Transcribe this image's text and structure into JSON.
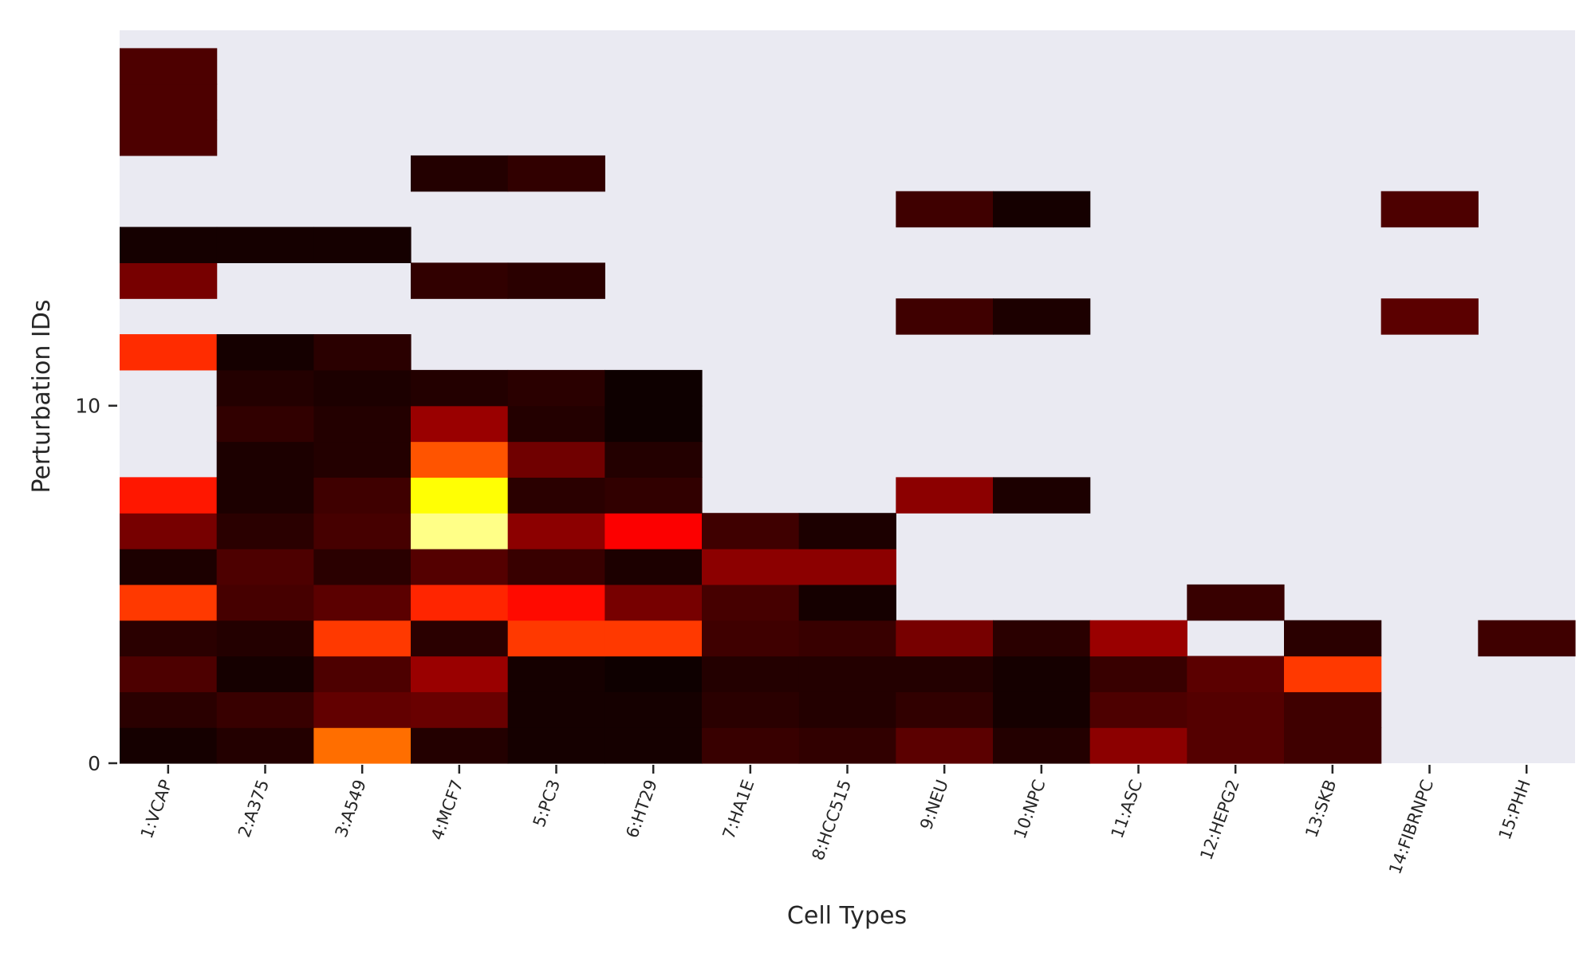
{
  "chart_data": {
    "type": "heatmap",
    "title": "",
    "xlabel": "Cell Types",
    "ylabel": "Perturbation IDs",
    "x_categories": [
      "1:VCAP",
      "2:A375",
      "3:A549",
      "4:MCF7",
      "5:PC3",
      "6:HT29",
      "7:HA1E",
      "8:HCC515",
      "9:NEU",
      "10:NPC",
      "11:ASC",
      "12:HEPG2",
      "13:SKB",
      "14:FIBRNPC",
      "15:PHH"
    ],
    "y_ticks": [
      0,
      10
    ],
    "ylim": [
      0,
      20.5
    ],
    "row_count": 20,
    "colormap": "hot",
    "missing_color": "#eaeaf2",
    "value_range": [
      0,
      1
    ],
    "grid": false,
    "legend": "none",
    "matrix": [
      [
        0.03,
        0.05,
        0.53,
        0.05,
        0.03,
        0.03,
        0.08,
        0.07,
        0.13,
        0.05,
        0.2,
        0.12,
        0.09,
        null,
        null
      ],
      [
        0.06,
        0.08,
        0.14,
        0.15,
        0.03,
        0.03,
        0.06,
        0.05,
        0.07,
        0.03,
        0.11,
        0.12,
        0.09,
        null,
        null
      ],
      [
        0.11,
        0.03,
        0.11,
        0.22,
        0.03,
        0.02,
        0.05,
        0.05,
        0.05,
        0.03,
        0.08,
        0.13,
        0.45,
        null,
        null
      ],
      [
        0.06,
        0.05,
        0.45,
        0.06,
        0.45,
        0.45,
        0.09,
        0.08,
        0.17,
        0.06,
        0.22,
        null,
        0.06,
        null,
        0.09
      ],
      [
        0.45,
        0.1,
        0.13,
        0.42,
        0.38,
        0.17,
        0.1,
        0.03,
        null,
        null,
        null,
        0.08,
        null,
        null,
        null
      ],
      [
        0.04,
        0.11,
        0.06,
        0.12,
        0.08,
        0.04,
        0.2,
        0.2,
        null,
        null,
        null,
        null,
        null,
        null,
        null
      ],
      [
        0.17,
        0.06,
        0.1,
        0.88,
        0.2,
        0.36,
        0.09,
        0.04,
        null,
        null,
        null,
        null,
        null,
        null,
        null
      ],
      [
        0.4,
        0.04,
        0.09,
        0.75,
        0.06,
        0.07,
        null,
        null,
        0.2,
        0.04,
        null,
        null,
        null,
        null,
        null
      ],
      [
        null,
        0.04,
        0.05,
        0.49,
        0.16,
        0.05,
        null,
        null,
        null,
        null,
        null,
        null,
        null,
        null,
        null
      ],
      [
        null,
        0.07,
        0.05,
        0.22,
        0.05,
        0.02,
        null,
        null,
        null,
        null,
        null,
        null,
        null,
        null,
        null
      ],
      [
        null,
        0.05,
        0.04,
        0.05,
        0.06,
        0.02,
        null,
        null,
        null,
        null,
        null,
        null,
        null,
        null,
        null
      ],
      [
        0.43,
        0.03,
        0.06,
        null,
        null,
        null,
        null,
        null,
        null,
        null,
        null,
        null,
        null,
        null,
        null
      ],
      [
        null,
        null,
        null,
        null,
        null,
        null,
        null,
        null,
        0.09,
        0.04,
        null,
        null,
        null,
        0.13,
        null
      ],
      [
        0.17,
        null,
        null,
        0.07,
        0.06,
        null,
        null,
        null,
        null,
        null,
        null,
        null,
        null,
        null,
        null
      ],
      [
        0.03,
        0.03,
        0.03,
        null,
        null,
        null,
        null,
        null,
        null,
        null,
        null,
        null,
        null,
        null,
        null
      ],
      [
        null,
        null,
        null,
        null,
        null,
        null,
        null,
        null,
        0.09,
        0.03,
        null,
        null,
        null,
        0.11,
        null
      ],
      [
        null,
        null,
        null,
        0.05,
        0.07,
        null,
        null,
        null,
        null,
        null,
        null,
        null,
        null,
        null,
        null
      ],
      [
        0.11,
        null,
        null,
        null,
        null,
        null,
        null,
        null,
        null,
        null,
        null,
        null,
        null,
        null,
        null
      ],
      [
        0.11,
        null,
        null,
        null,
        null,
        null,
        null,
        null,
        null,
        null,
        null,
        null,
        null,
        null,
        null
      ],
      [
        0.11,
        null,
        null,
        null,
        null,
        null,
        null,
        null,
        null,
        null,
        null,
        null,
        null,
        null,
        null
      ]
    ]
  }
}
